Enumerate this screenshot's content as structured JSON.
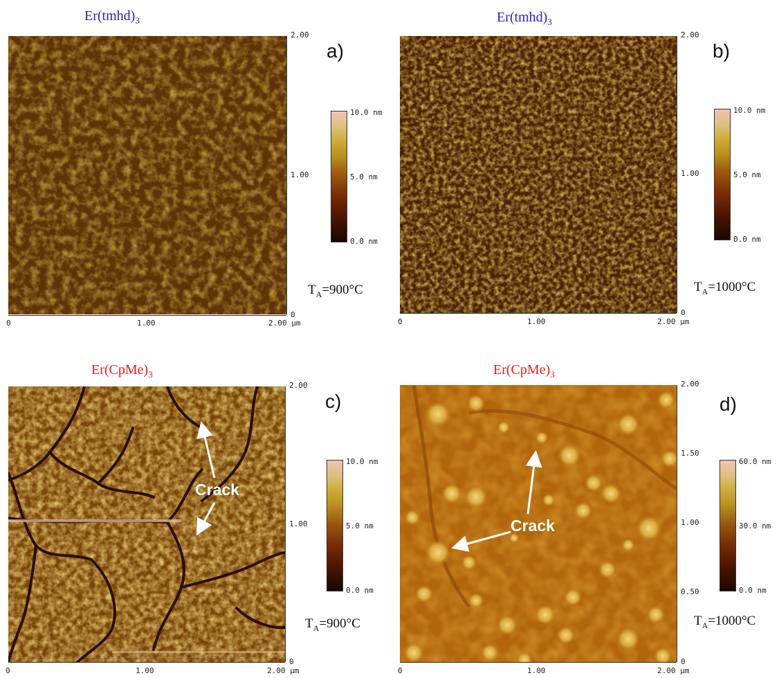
{
  "panels": [
    {
      "title_main": "Er(tmhd)",
      "title_sub": "3",
      "title_color": "#2a1fb5",
      "letter": "a)",
      "temp_main": "T",
      "temp_sub": "A",
      "temp_value": "=900°C",
      "y_ticks": [
        "2.00",
        "1.00",
        "0"
      ],
      "x_ticks": [
        "0",
        "1.00",
        "2.00 µm"
      ],
      "colorbar": [
        "10.0 nm",
        "5.0 nm",
        "0.0 nm"
      ],
      "crack": ""
    },
    {
      "title_main": "Er(tmhd)",
      "title_sub": "3",
      "title_color": "#2a1fb5",
      "letter": "b)",
      "temp_main": "T",
      "temp_sub": "A",
      "temp_value": "=1000°C",
      "y_ticks": [
        "2.00",
        "1.00",
        "0"
      ],
      "x_ticks": [
        "0",
        "1.00",
        "2.00 µm"
      ],
      "colorbar": [
        "10.0 nm",
        "5.0 nm",
        "0.0 nm"
      ],
      "crack": ""
    },
    {
      "title_main": "Er(CpMe)",
      "title_sub": "3",
      "title_color": "#e3201b",
      "letter": "c)",
      "temp_main": "T",
      "temp_sub": "A",
      "temp_value": "=900°C",
      "y_ticks": [
        "2.00",
        "1.00",
        "0"
      ],
      "x_ticks": [
        "0",
        "1.00",
        "2.00 µm"
      ],
      "colorbar": [
        "10.0 nm",
        "5.0 nm",
        "0.0 nm"
      ],
      "crack": "Crack"
    },
    {
      "title_main": "Er(CpMe)",
      "title_sub": "3",
      "title_color": "#e3201b",
      "letter": "d)",
      "temp_main": "T",
      "temp_sub": "A",
      "temp_value": "=1000°C",
      "y_ticks": [
        "2.00",
        "1.50",
        "1.00",
        "0.50",
        "0"
      ],
      "x_ticks": [
        "0",
        "1.00",
        "2.00 µm"
      ],
      "colorbar": [
        "60.0 nm",
        "30.0 nm",
        "0.0 nm"
      ],
      "crack": "Crack"
    }
  ]
}
